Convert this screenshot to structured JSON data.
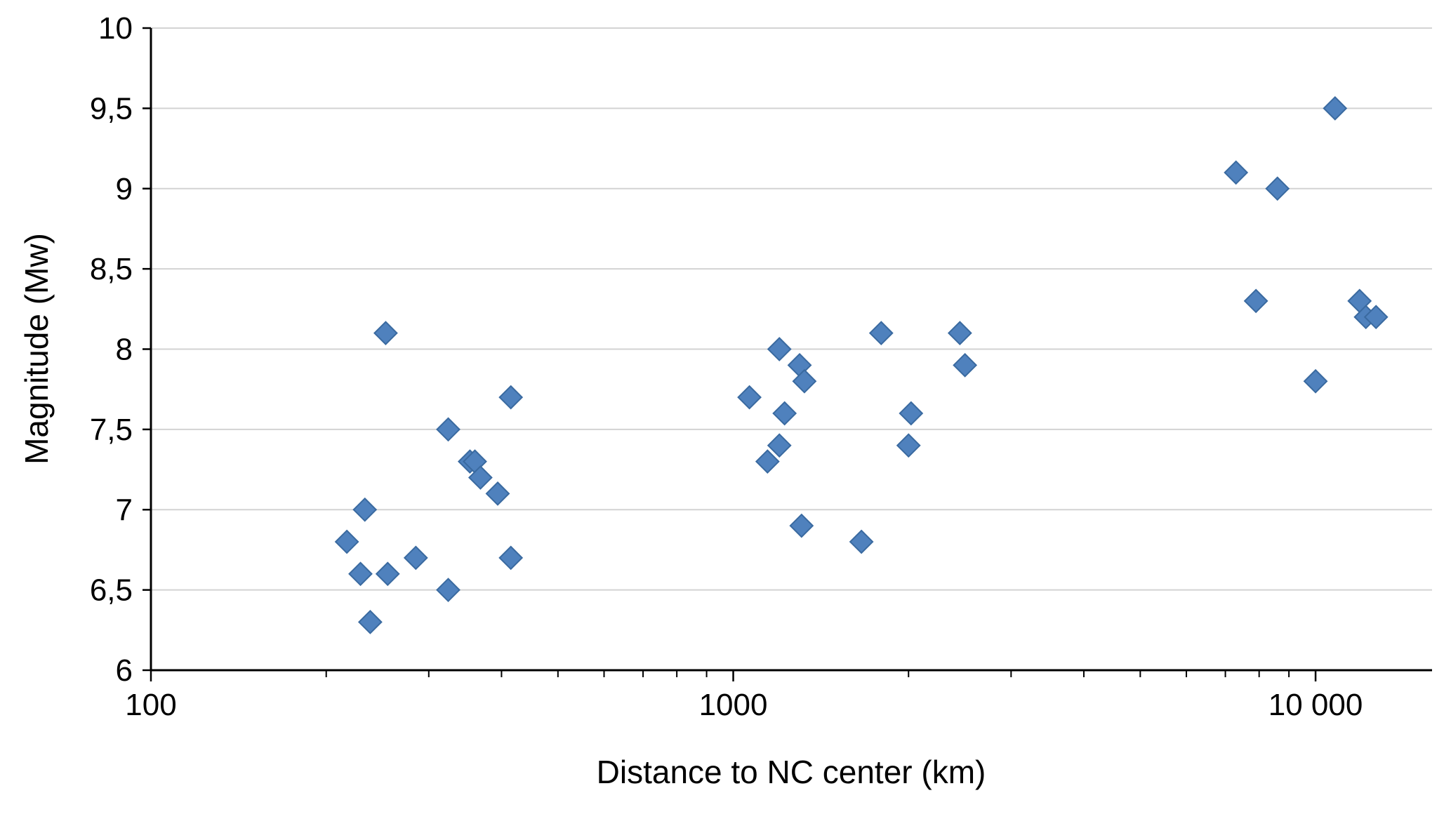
{
  "chart_data": {
    "type": "scatter",
    "title": "",
    "xlabel": "Distance to NC center (km)",
    "ylabel": "Magnitude (Mw)",
    "x_scale": "log",
    "xlim": [
      100,
      15850
    ],
    "ylim": [
      6,
      10
    ],
    "x_ticks": [
      100,
      1000,
      10000
    ],
    "x_tick_labels": [
      "100",
      "1000",
      "10 000"
    ],
    "y_ticks": [
      6,
      6.5,
      7,
      7.5,
      8,
      8.5,
      9,
      9.5,
      10
    ],
    "y_tick_labels": [
      "6",
      "6,5",
      "7",
      "7,5",
      "8",
      "8,5",
      "9",
      "9,5",
      "10"
    ],
    "grid": "horizontal",
    "gridline_color": "#d3d3d3",
    "axis_color": "#000000",
    "marker": {
      "shape": "diamond",
      "fill": "#4f81bd",
      "stroke": "#3a6aa0",
      "half_size": 16
    },
    "points": [
      [
        217,
        6.8
      ],
      [
        229,
        6.6
      ],
      [
        233,
        7.0
      ],
      [
        238,
        6.3
      ],
      [
        255,
        6.6
      ],
      [
        253,
        8.1
      ],
      [
        285,
        6.7
      ],
      [
        324,
        7.5
      ],
      [
        324,
        6.5
      ],
      [
        353,
        7.3
      ],
      [
        360,
        7.3
      ],
      [
        368,
        7.2
      ],
      [
        394,
        7.1
      ],
      [
        415,
        7.7
      ],
      [
        415,
        6.7
      ],
      [
        1066,
        7.7
      ],
      [
        1145,
        7.3
      ],
      [
        1200,
        8.0
      ],
      [
        1225,
        7.6
      ],
      [
        1200,
        7.4
      ],
      [
        1300,
        7.9
      ],
      [
        1325,
        7.8
      ],
      [
        1310,
        6.9
      ],
      [
        1660,
        6.8
      ],
      [
        1795,
        8.1
      ],
      [
        2020,
        7.6
      ],
      [
        2000,
        7.4
      ],
      [
        2450,
        8.1
      ],
      [
        2500,
        7.9
      ],
      [
        7300,
        9.1
      ],
      [
        7900,
        8.3
      ],
      [
        8600,
        9.0
      ],
      [
        10000,
        7.8
      ],
      [
        10800,
        9.5
      ],
      [
        11900,
        8.3
      ],
      [
        12200,
        8.2
      ],
      [
        12700,
        8.2
      ]
    ]
  }
}
